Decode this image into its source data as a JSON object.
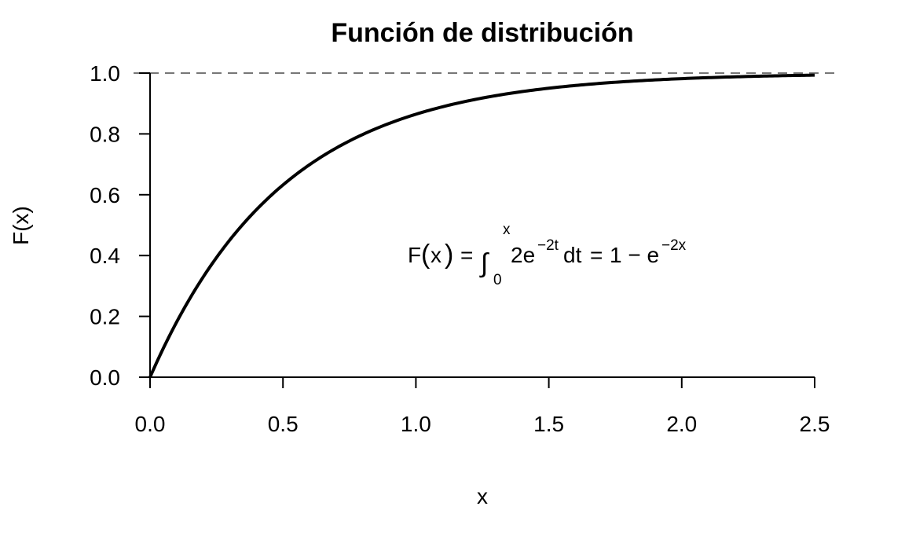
{
  "chart_data": {
    "type": "line",
    "title": "Función de distribución",
    "xlabel": "x",
    "ylabel": "F(x)",
    "xlim": [
      0,
      2.5
    ],
    "ylim": [
      0,
      1.0
    ],
    "x_ticks": [
      "0.0",
      "0.5",
      "1.0",
      "1.5",
      "2.0",
      "2.5"
    ],
    "y_ticks": [
      "0.0",
      "0.2",
      "0.4",
      "0.6",
      "0.8",
      "1.0"
    ],
    "grid": false,
    "function": "1 - e^(-2x)",
    "x": [
      0.0,
      0.25,
      0.5,
      0.75,
      1.0,
      1.25,
      1.5,
      1.75,
      2.0,
      2.25,
      2.5
    ],
    "y": [
      0.0,
      0.393,
      0.632,
      0.777,
      0.865,
      0.918,
      0.95,
      0.97,
      0.982,
      0.989,
      0.993
    ],
    "reference_line": {
      "y": 1.0,
      "style": "dashed",
      "color": "#777777"
    },
    "line_color": "#000000",
    "annotation": {
      "lhs": "F",
      "arg": "x",
      "eq": "=",
      "integral_sign": "∫",
      "upper_limit": "x",
      "lower_limit": "0",
      "integrand_coef": "2e",
      "integrand_exp": "−2t",
      "differential": "dt",
      "rhs_prefix": "1 − e",
      "rhs_exp": "−2x"
    }
  }
}
